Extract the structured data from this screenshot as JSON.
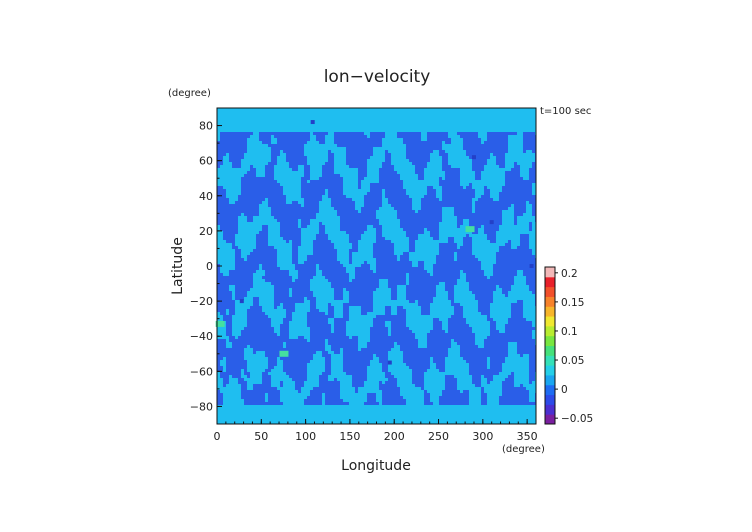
{
  "chart_data": {
    "type": "heatmap",
    "title": "lon−velocity",
    "time_label": "t=100 sec",
    "xlabel": "Longitude",
    "ylabel": "Latitude",
    "x_unit": "(degree)",
    "y_unit": "(degree)",
    "xlim": [
      0,
      360
    ],
    "ylim": [
      -90,
      90
    ],
    "x_ticks": [
      "0",
      "50",
      "100",
      "150",
      "200",
      "250",
      "300",
      "350"
    ],
    "y_ticks": [
      "80",
      "60",
      "40",
      "20",
      "0",
      "−20",
      "−40",
      "−60",
      "−80"
    ],
    "colorbar": {
      "range": [
        -0.06,
        0.21
      ],
      "tick_labels": [
        "0.2",
        "0.15",
        "0.1",
        "0.05",
        "0",
        "−0.05"
      ],
      "colors": [
        "#7a1fa0",
        "#4b2fd0",
        "#2d4be8",
        "#1e6cf2",
        "#1aa6f0",
        "#25cfe8",
        "#35e0b8",
        "#45e07a",
        "#78e640",
        "#b8ec30",
        "#f0e830",
        "#f7b52a",
        "#f7822a",
        "#f2502a",
        "#e8202a",
        "#f2b8b8"
      ]
    },
    "colors": {
      "dominant_low": "#2a5ee8",
      "dominant_high": "#1fbef0",
      "dark_spot": "#2340c8",
      "green_spot": "#45e0a0"
    }
  }
}
